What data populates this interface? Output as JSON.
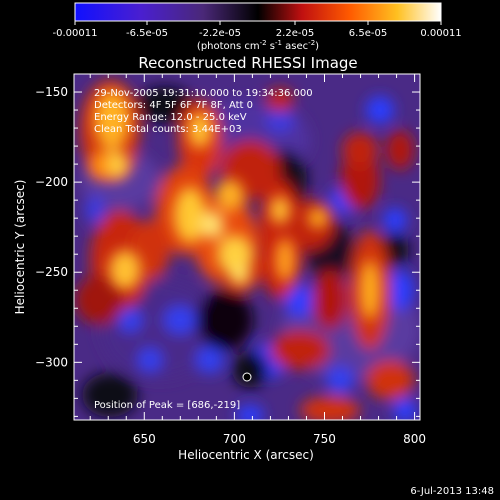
{
  "colorbar": {
    "ticks": [
      "-0.00011",
      "-6.5e-05",
      "-2.2e-05",
      "2.2e-05",
      "6.5e-05",
      "0.00011"
    ],
    "unit_main": "(photons cm",
    "unit_sup1": "-2",
    "unit_mid": " s",
    "unit_sup2": "-1",
    "unit_tail": " asec",
    "unit_sup3": "-2",
    "unit_close": ")",
    "range": [
      -0.00011,
      0.00011
    ],
    "colormap": "blue-purple-black-red-orange-yellow-white"
  },
  "chart_data": {
    "type": "heatmap",
    "title": "Reconstructed RHESSI Image",
    "xlabel": "Heliocentric X (arcsec)",
    "ylabel": "Heliocentric Y (arcsec)",
    "xlim": [
      611,
      803
    ],
    "ylim": [
      -332,
      -140
    ],
    "x_ticks": [
      650,
      700,
      750,
      800
    ],
    "y_ticks": [
      -150,
      -200,
      -250,
      -300
    ],
    "peak": [
      686,
      -219
    ],
    "annotations": [
      "29-Nov-2005 19:31:10.000 to 19:34:36.000",
      "Detectors: 4F 5F 6F 7F 8F, Att 0",
      "Energy Range: 12.0 - 25.0 keV",
      "Clean     Total counts: 3.44E+03"
    ],
    "peak_label": "Position of Peak = [686,-219]"
  },
  "footer": {
    "timestamp": "6-Jul-2013 13:48"
  }
}
